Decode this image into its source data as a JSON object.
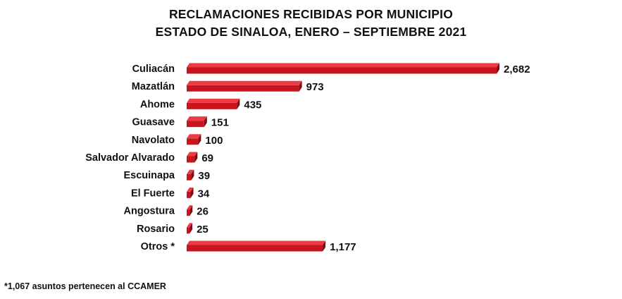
{
  "chart_data": {
    "type": "bar",
    "orientation": "horizontal",
    "title": "RECLAMACIONES RECIBIDAS POR MUNICIPIO",
    "subtitle": "ESTADO DE SINALOA, ENERO – SEPTIEMBRE 2021",
    "categories": [
      "Culiacán",
      "Mazatlán",
      "Ahome",
      "Guasave",
      "Navolato",
      "Salvador Alvarado",
      "Escuinapa",
      "El Fuerte",
      "Angostura",
      "Rosario",
      "Otros *"
    ],
    "values": [
      2682,
      973,
      435,
      151,
      100,
      69,
      39,
      34,
      26,
      25,
      1177
    ],
    "value_labels": [
      "2,682",
      "973",
      "435",
      "151",
      "100",
      "69",
      "39",
      "34",
      "26",
      "25",
      "1,177"
    ],
    "bar_style": "3d",
    "colors": {
      "bar_front": "#c8141e",
      "bar_top": "#ee3a42",
      "bar_side": "#7e0c12"
    },
    "grid": false,
    "legend": "none"
  },
  "footnote": "*1,067 asuntos pertenecen al CCAMER"
}
